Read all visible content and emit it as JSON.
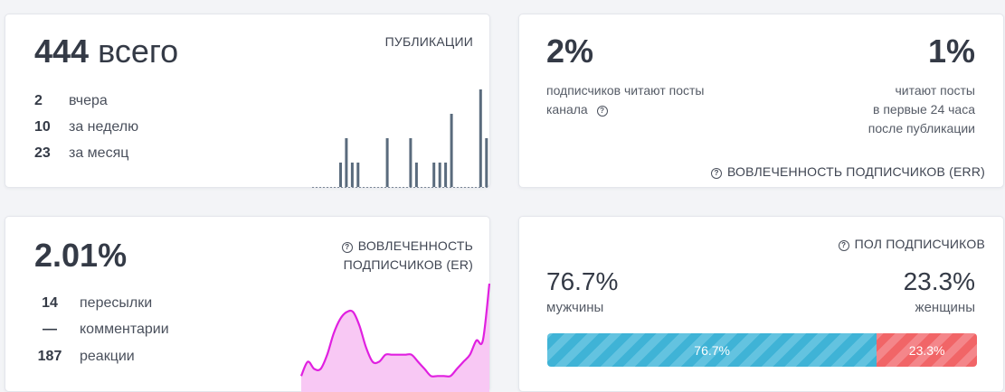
{
  "publications": {
    "total_number": "444",
    "total_suffix": "всего",
    "title": "ПУБЛИКАЦИИ",
    "stats": [
      {
        "value": "2",
        "label": "вчера"
      },
      {
        "value": "10",
        "label": "за неделю"
      },
      {
        "value": "23",
        "label": "за месяц"
      }
    ]
  },
  "engagement_err": {
    "left_value": "2%",
    "left_caption_line1": "подписчиков читают посты",
    "left_caption_line2": "канала",
    "right_value": "1%",
    "right_caption_line1": "читают посты",
    "right_caption_line2": "в первые 24 часа",
    "right_caption_line3": "после публикации",
    "title": "ВОВЛЕЧЕННОСТЬ ПОДПИСЧИКОВ (ERR)"
  },
  "engagement_er": {
    "value": "2.01%",
    "title_line1": "ВОВЛЕЧЕННОСТЬ",
    "title_line2": "ПОДПИСЧИКОВ (ER)",
    "stats": [
      {
        "value": "14",
        "label": "пересылки"
      },
      {
        "value": "—",
        "label": "комментарии"
      },
      {
        "value": "187",
        "label": "реакции"
      }
    ]
  },
  "gender": {
    "title": "ПОЛ ПОДПИСЧИКОВ",
    "male_value": "76.7%",
    "male_label": "мужчины",
    "female_value": "23.3%",
    "female_label": "женщины",
    "male_share": 0.767,
    "female_share": 0.233,
    "male_bar_label": "76.7%",
    "female_bar_label": "23.3%",
    "male_color": "#3fb3d6",
    "female_color": "#f16567"
  },
  "chart_data": [
    {
      "type": "bar",
      "values": [
        0,
        0,
        0,
        0,
        0,
        1,
        2,
        1,
        1,
        0,
        0,
        0,
        0,
        2,
        0,
        0,
        0,
        2,
        1,
        0,
        0,
        1,
        1,
        1,
        3,
        0,
        0,
        0,
        0,
        4,
        2
      ],
      "color": "#5a6b7d"
    },
    {
      "type": "area",
      "values": [
        2,
        4,
        3,
        3,
        5,
        8,
        10,
        11,
        11,
        9,
        6,
        4,
        4,
        5,
        5,
        5,
        5,
        5,
        4,
        3,
        2,
        2,
        2,
        2,
        3,
        4,
        5,
        7,
        7,
        15
      ],
      "color": "#e020e0",
      "fill": "#f8c8f4"
    }
  ]
}
